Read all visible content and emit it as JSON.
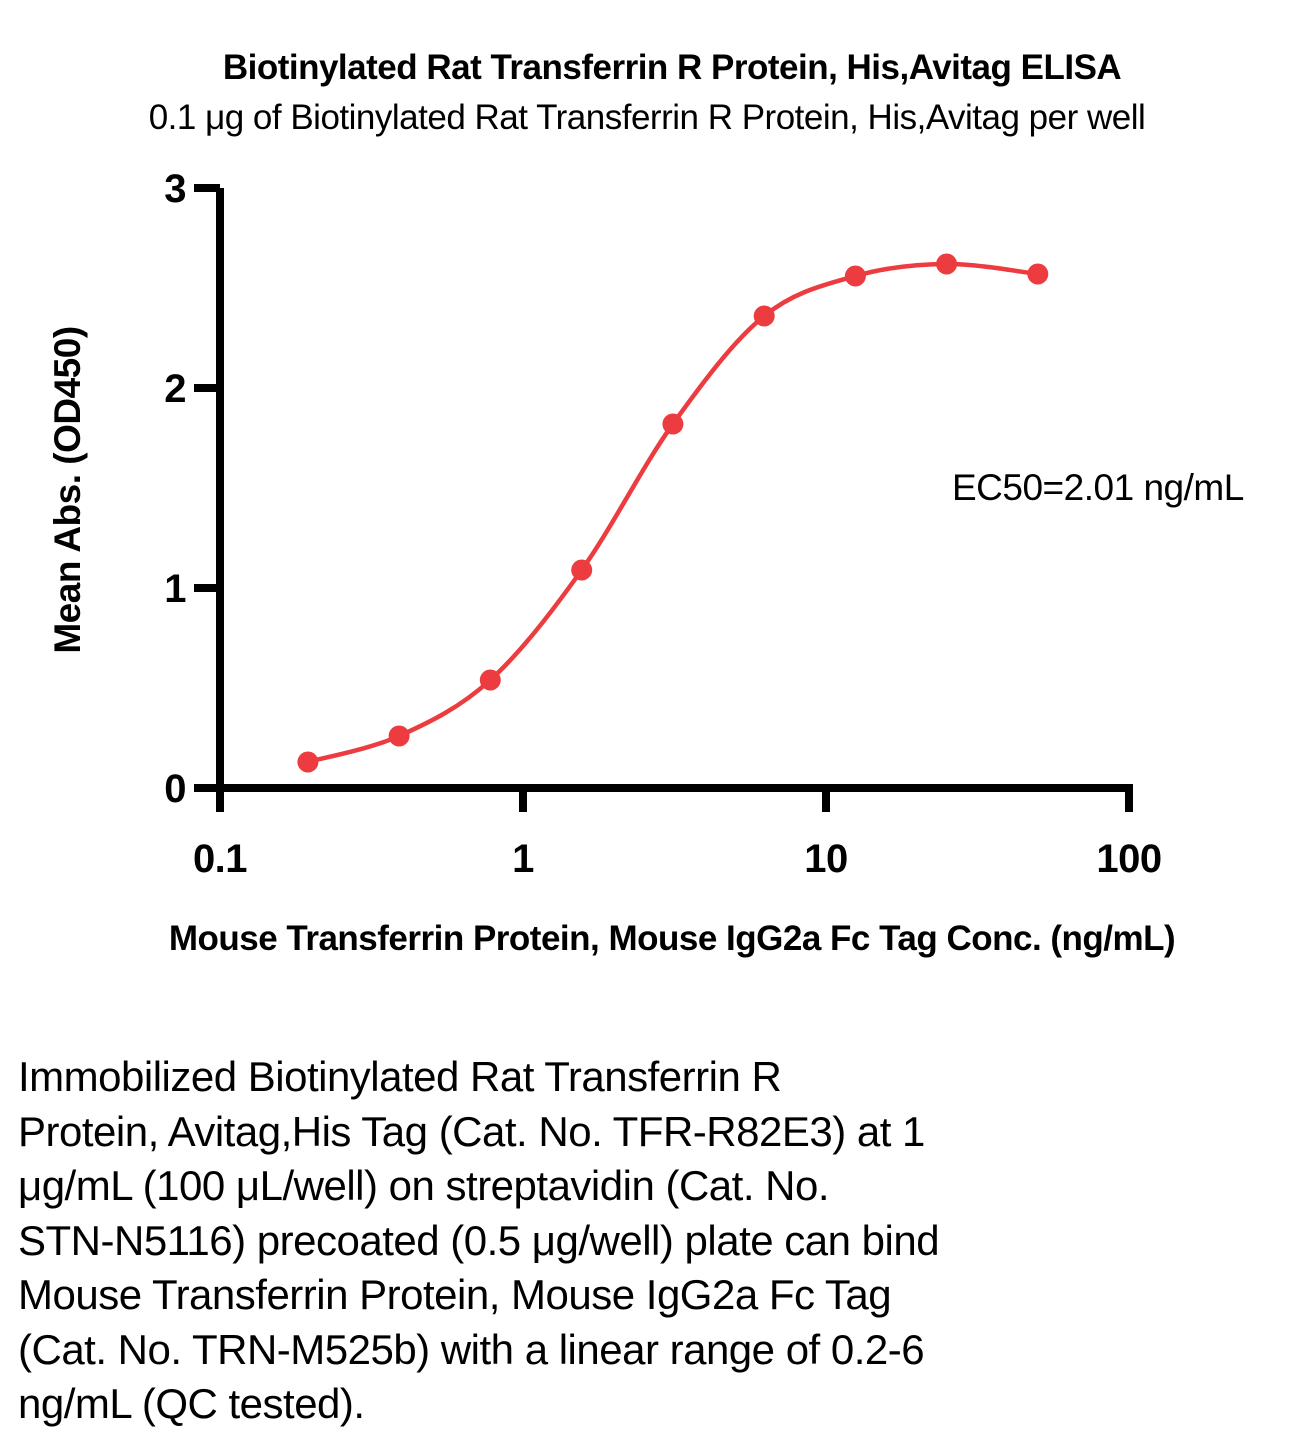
{
  "title": "Biotinylated Rat Transferrin R Protein, His,Avitag ELISA",
  "subtitle": "0.1 μg of Biotinylated Rat Transferrin R Protein, His,Avitag per well",
  "chart_data": {
    "type": "scatter",
    "x": [
      0.195,
      0.39,
      0.78,
      1.5625,
      3.125,
      6.25,
      12.5,
      25,
      50
    ],
    "series": [
      {
        "name": "Mean Abs. (OD450)",
        "values": [
          0.13,
          0.26,
          0.54,
          1.09,
          1.82,
          2.36,
          2.56,
          2.62,
          2.57
        ]
      }
    ],
    "fit": "sigmoidal dose-response through points",
    "xlabel": "Mouse Transferrin Protein, Mouse IgG2a Fc Tag Conc. (ng/mL)",
    "ylabel": "Mean Abs. (OD450)",
    "xscale": "log",
    "xlim": [
      0.1,
      100
    ],
    "ylim": [
      0,
      3
    ],
    "xticks": [
      0.1,
      1,
      10,
      100
    ],
    "xtick_labels": [
      "0.1",
      "1",
      "10",
      "100"
    ],
    "yticks": [
      0,
      1,
      2,
      3
    ],
    "ytick_labels": [
      "0",
      "1",
      "2",
      "3"
    ],
    "annotation": "EC50=2.01 ng/mL",
    "ec50": "2.01 ng/mL",
    "grid": false,
    "legend_position": "none",
    "point_color": "#ED3C3F",
    "line_color": "#ED3C3F",
    "axis_color": "#000000"
  },
  "caption": {
    "lines": [
      "Immobilized Biotinylated Rat Transferrin R",
      "Protein, Avitag,His Tag (Cat. No. TFR-R82E3) at 1",
      "μg/mL (100 μL/well) on streptavidin (Cat. No.",
      "STN-N5116) precoated (0.5 μg/well) plate can bind",
      "Mouse Transferrin Protein, Mouse IgG2a Fc Tag",
      "(Cat. No. TRN-M525b) with a linear range of 0.2-6",
      "ng/mL (QC tested)."
    ],
    "full_text": "Immobilized Biotinylated Rat Transferrin R Protein, Avitag,His Tag (Cat. No. TFR-R82E3) at 1 μg/mL (100 μL/well) on streptavidin (Cat. No. STN-N5116) precoated (0.5 μg/well) plate can bind Mouse Transferrin Protein, Mouse IgG2a Fc Tag (Cat. No. TRN-M525b) with a linear range of 0.2-6 ng/mL (QC tested)."
  }
}
